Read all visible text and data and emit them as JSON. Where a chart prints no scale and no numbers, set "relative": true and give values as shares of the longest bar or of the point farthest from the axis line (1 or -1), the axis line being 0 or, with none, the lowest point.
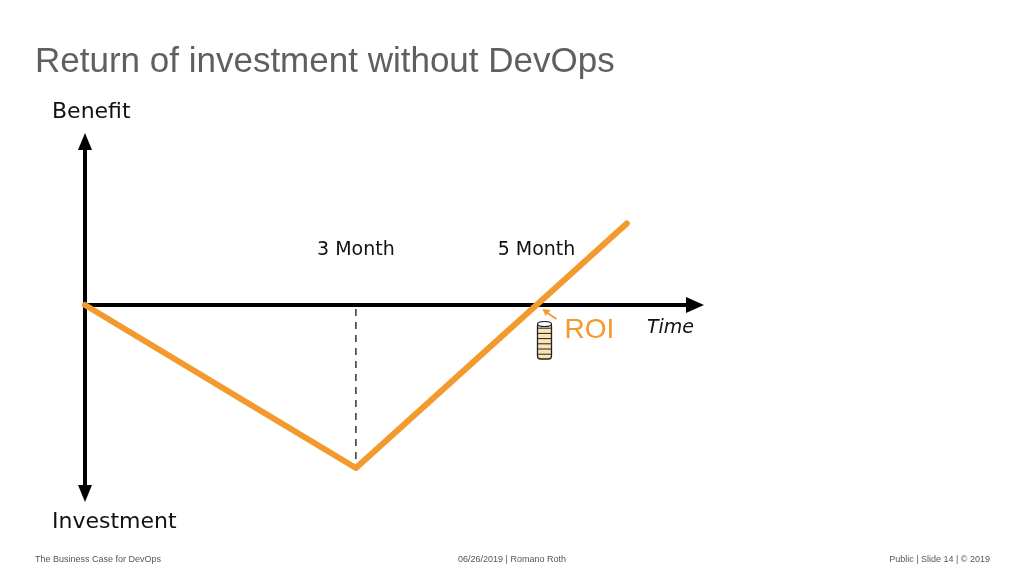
{
  "chart_data": {
    "type": "line",
    "title": "Return of investment without DevOps",
    "xlabel": "Time",
    "ylabel": "Benefit",
    "relative": true,
    "x": [
      0,
      3,
      5,
      6
    ],
    "series": [
      {
        "color": "#f29a2e",
        "values": [
          0,
          -1,
          0,
          0.5
        ]
      }
    ],
    "xlim": [
      0,
      6.7
    ],
    "xticks": [
      {
        "value": 3,
        "label": "3 Month"
      },
      {
        "value": 5,
        "label": "5 Month"
      }
    ],
    "ref_lines": [
      {
        "axis": "x",
        "value": 3,
        "line_style": "dashed",
        "color": "#333333"
      }
    ],
    "line_style": "solid",
    "annotations": [
      {
        "text": "ROI",
        "x": 5,
        "y": 0
      },
      "Investment",
      "The Business Case for DevOps",
      "06/26/2019 | Romano Roth",
      "Public | Slide 14 | © 2019"
    ]
  }
}
